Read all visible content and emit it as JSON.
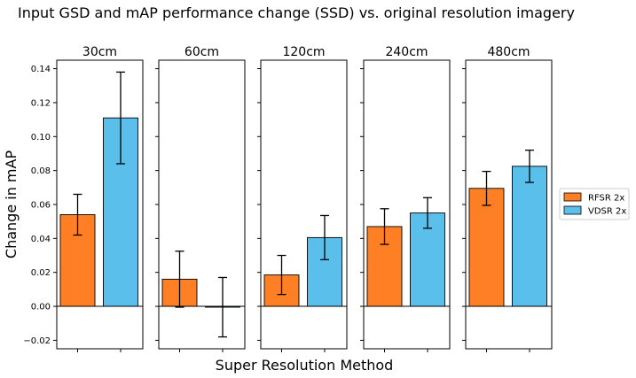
{
  "figure": {
    "title": "Input GSD and mAP performance change (SSD) vs. original resolution imagery",
    "ylabel": "Change in mAP",
    "xlabel": "Super Resolution Method"
  },
  "legend": {
    "placement": "center-right",
    "entries": [
      {
        "label": "RFSR 2x",
        "color": "#FF7F24"
      },
      {
        "label": "VDSR 2x",
        "color": "#5ABFEB"
      }
    ]
  },
  "chart_data": {
    "type": "bar",
    "title": "Input GSD and mAP performance change (SSD) vs. original resolution imagery",
    "xlabel": "Super Resolution Method",
    "ylabel": "Change in mAP",
    "ylim": [
      -0.025,
      0.145
    ],
    "yticks": [
      -0.02,
      0.0,
      0.02,
      0.04,
      0.06,
      0.08,
      0.1,
      0.12,
      0.14
    ],
    "ytick_labels": [
      "−0.02",
      "0.00",
      "0.02",
      "0.04",
      "0.06",
      "0.08",
      "0.10",
      "0.12",
      "0.14"
    ],
    "grid": false,
    "series": [
      {
        "name": "RFSR 2x",
        "color": "#FF7F24"
      },
      {
        "name": "VDSR 2x",
        "color": "#5ABFEB"
      }
    ],
    "panels": [
      {
        "title": "30cm",
        "bars": [
          {
            "series": "RFSR 2x",
            "value": 0.054,
            "err": 0.012
          },
          {
            "series": "VDSR 2x",
            "value": 0.111,
            "err": 0.027
          }
        ]
      },
      {
        "title": "60cm",
        "bars": [
          {
            "series": "RFSR 2x",
            "value": 0.016,
            "err": 0.0165
          },
          {
            "series": "VDSR 2x",
            "value": -0.0005,
            "err": 0.0175
          }
        ]
      },
      {
        "title": "120cm",
        "bars": [
          {
            "series": "RFSR 2x",
            "value": 0.0185,
            "err": 0.0115
          },
          {
            "series": "VDSR 2x",
            "value": 0.0405,
            "err": 0.013
          }
        ]
      },
      {
        "title": "240cm",
        "bars": [
          {
            "series": "RFSR 2x",
            "value": 0.047,
            "err": 0.0105
          },
          {
            "series": "VDSR 2x",
            "value": 0.055,
            "err": 0.009
          }
        ]
      },
      {
        "title": "480cm",
        "bars": [
          {
            "series": "RFSR 2x",
            "value": 0.0695,
            "err": 0.01
          },
          {
            "series": "VDSR 2x",
            "value": 0.0825,
            "err": 0.0095
          }
        ]
      }
    ]
  }
}
